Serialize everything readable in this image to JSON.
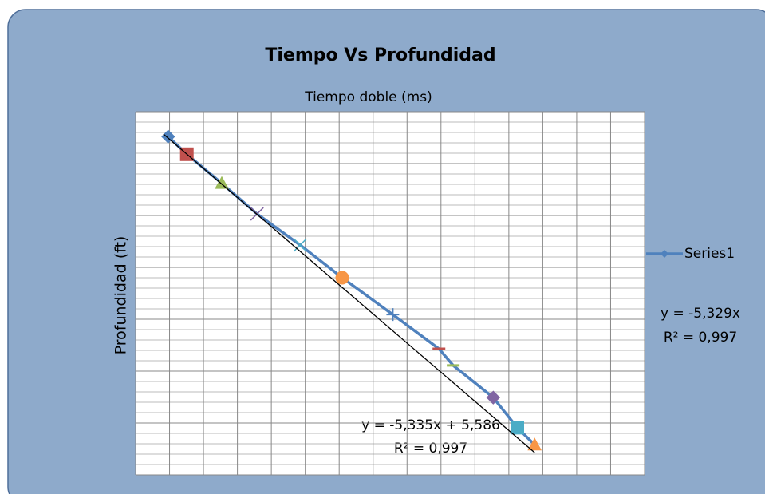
{
  "chart_data": {
    "type": "line",
    "title": "Tiempo Vs Profundidad",
    "x_label": "Tiempo doble (ms)",
    "y_label": "Profundidad (ft)",
    "xlim": [
      0,
      15
    ],
    "ylim": [
      0,
      7
    ],
    "xticks": [
      0,
      1,
      2,
      3,
      4,
      5,
      6,
      7,
      8,
      9,
      10,
      11,
      12,
      13,
      14,
      15
    ],
    "yticks": [
      0,
      0.2,
      0.4,
      0.6,
      0.8,
      1,
      1.2,
      1.4,
      1.6,
      1.8,
      2,
      2.2,
      2.4,
      2.6,
      2.8,
      3,
      3.2,
      3.4,
      3.6,
      3.8,
      4,
      4.2,
      4.4,
      4.6,
      4.8,
      5,
      5.2,
      5.4,
      5.6,
      5.8,
      6,
      6.2,
      6.4,
      6.6,
      6.8,
      7
    ],
    "grid": true,
    "series": [
      {
        "name": "Series1",
        "color": "#4f81bd",
        "x": [
          0.96,
          1.51,
          2.54,
          3.58,
          4.85,
          6.09,
          7.58,
          8.94,
          9.36,
          10.54,
          11.25,
          11.76
        ],
        "values": [
          6.52,
          6.18,
          5.62,
          5.03,
          4.43,
          3.8,
          3.09,
          2.43,
          2.11,
          1.49,
          0.91,
          0.58
        ],
        "marker_shapes": [
          "diamond",
          "square",
          "triangle",
          "x",
          "x",
          "circle",
          "plus",
          "dash",
          "dash",
          "diamond",
          "square",
          "triangle"
        ],
        "marker_colors": [
          "#4f81bd",
          "#c0504d",
          "#9bbb59",
          "#8064a2",
          "#4bacc6",
          "#f79646",
          "#4f81bd",
          "#c0504d",
          "#9bbb59",
          "#8064a2",
          "#4bacc6",
          "#f79646"
        ]
      }
    ],
    "trendline": {
      "x": [
        0.82,
        11.76
      ],
      "values": [
        6.57,
        0.43
      ],
      "color": "#000000"
    },
    "annotations": [
      "y = -5,335x + 5,586",
      "R² = 0,997",
      "y = -5,329x",
      "R² = 0,997"
    ],
    "legend": "right"
  }
}
